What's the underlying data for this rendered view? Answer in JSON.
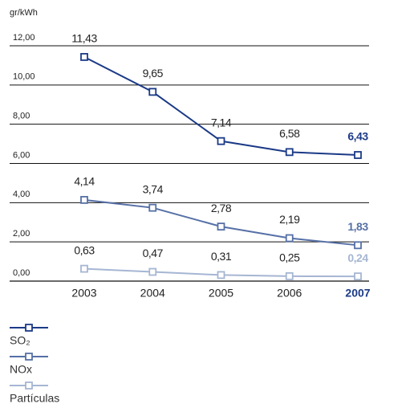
{
  "chart_data": {
    "type": "line",
    "y_label": "gr/kWh",
    "categories": [
      "2003",
      "2004",
      "2005",
      "2006",
      "2007"
    ],
    "series": [
      {
        "name": "SO₂",
        "color": "#1b3a87",
        "values": [
          11.43,
          9.65,
          7.14,
          6.58,
          6.43
        ],
        "value_labels": [
          "11,43",
          "9,65",
          "7,14",
          "6,58",
          "6,43"
        ]
      },
      {
        "name": "NOx",
        "color": "#5670a6",
        "values": [
          4.14,
          3.74,
          2.78,
          2.19,
          1.83
        ],
        "value_labels": [
          "4,14",
          "3,74",
          "2,78",
          "2,19",
          "1,83"
        ]
      },
      {
        "name": "Partículas",
        "color": "#a6b6d3",
        "values": [
          0.63,
          0.47,
          0.31,
          0.25,
          0.24
        ],
        "value_labels": [
          "0,63",
          "0,47",
          "0,31",
          "0,25",
          "0,24"
        ]
      }
    ],
    "ylim": [
      0,
      12
    ],
    "yticks": [
      {
        "value": 0,
        "label": "0,00"
      },
      {
        "value": 2,
        "label": "2,00"
      },
      {
        "value": 4,
        "label": "4,00"
      },
      {
        "value": 6,
        "label": "6,00"
      },
      {
        "value": 8,
        "label": "8,00"
      },
      {
        "value": 10,
        "label": "10,00"
      },
      {
        "value": 12,
        "label": "12,00"
      }
    ],
    "grid": true
  }
}
